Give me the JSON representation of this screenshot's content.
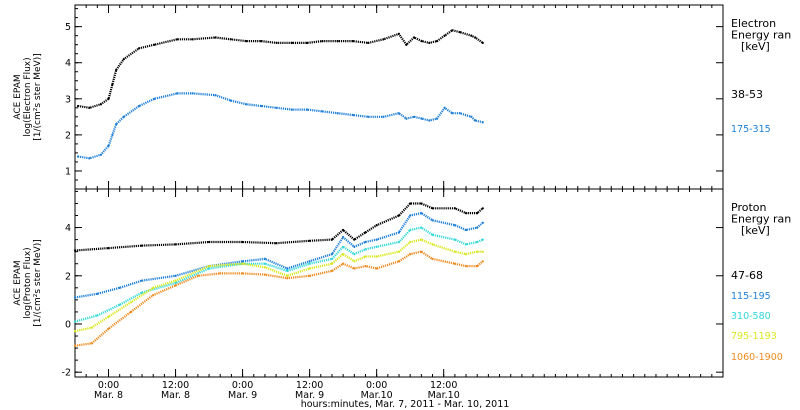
{
  "chart_data": [
    {
      "type": "scatter",
      "panel": "electron",
      "ylabel_lines": [
        "ACE EPAM",
        "log(Electron Flux)",
        "[1/(cm²s ster MeV)]"
      ],
      "ylim": [
        0.5,
        5.6
      ],
      "yticks": [
        1,
        2,
        3,
        4,
        5
      ],
      "legend_title_lines": [
        "Electron",
        "Energy ran",
        "[keV]"
      ],
      "series": [
        {
          "name": "38-53",
          "color": "#000000",
          "x": [
            0,
            3,
            6,
            8,
            9,
            10,
            12,
            16,
            20,
            26,
            30,
            36,
            40,
            44,
            48,
            52,
            56,
            60,
            64,
            68,
            72,
            76,
            80,
            84,
            86,
            88,
            90,
            92,
            94,
            96,
            98,
            100,
            103,
            104,
            106
          ],
          "y": [
            2.8,
            2.75,
            2.85,
            3.0,
            3.4,
            3.8,
            4.1,
            4.4,
            4.5,
            4.65,
            4.65,
            4.7,
            4.65,
            4.6,
            4.6,
            4.55,
            4.55,
            4.55,
            4.6,
            4.6,
            4.6,
            4.55,
            4.65,
            4.8,
            4.5,
            4.7,
            4.6,
            4.55,
            4.6,
            4.75,
            4.9,
            4.85,
            4.75,
            4.7,
            4.55
          ]
        },
        {
          "name": "175-315",
          "color": "#1e7fd8",
          "x": [
            0,
            3,
            6,
            8,
            9,
            10,
            12,
            16,
            20,
            26,
            30,
            36,
            40,
            44,
            48,
            52,
            56,
            60,
            64,
            68,
            72,
            76,
            80,
            84,
            86,
            88,
            90,
            92,
            94,
            96,
            98,
            100,
            103,
            104,
            106
          ],
          "y": [
            1.4,
            1.35,
            1.45,
            1.7,
            2.0,
            2.3,
            2.5,
            2.8,
            3.0,
            3.15,
            3.15,
            3.1,
            2.95,
            2.85,
            2.8,
            2.75,
            2.7,
            2.7,
            2.65,
            2.6,
            2.55,
            2.5,
            2.5,
            2.6,
            2.45,
            2.5,
            2.45,
            2.4,
            2.45,
            2.75,
            2.6,
            2.6,
            2.5,
            2.4,
            2.35
          ]
        }
      ]
    },
    {
      "type": "scatter",
      "panel": "proton",
      "ylabel_lines": [
        "ACE EPAM",
        "log(Proton Flux)",
        "[1/(cm²s ster MeV)]"
      ],
      "ylim": [
        -2.2,
        5.6
      ],
      "yticks": [
        -2,
        0,
        2,
        4
      ],
      "legend_title_lines": [
        "Proton",
        "Energy ran",
        "[keV]"
      ],
      "xlabel": "hours:minutes, Mar.  7, 2011 - Mar. 10, 2011",
      "xlim": [
        -6,
        110
      ],
      "xticks": [
        {
          "hour": 0,
          "time": "0:00",
          "date": "Mar. 8"
        },
        {
          "hour": 12,
          "time": "12:00",
          "date": "Mar. 8"
        },
        {
          "hour": 24,
          "time": "0:00",
          "date": "Mar. 9"
        },
        {
          "hour": 36,
          "time": "12:00",
          "date": "Mar. 9"
        },
        {
          "hour": 48,
          "time": "0:00",
          "date": "Mar.10"
        },
        {
          "hour": 60,
          "time": "12:00",
          "date": "Mar.10"
        }
      ],
      "series": [
        {
          "name": "47-68",
          "color": "#000000",
          "x": [
            -6,
            0,
            6,
            12,
            18,
            24,
            30,
            36,
            40,
            42,
            44,
            46,
            48,
            52,
            54,
            56,
            58,
            62,
            64,
            66,
            67
          ],
          "y": [
            3.05,
            3.15,
            3.25,
            3.3,
            3.4,
            3.4,
            3.35,
            3.45,
            3.5,
            3.9,
            3.5,
            3.8,
            4.1,
            4.5,
            5.0,
            5.0,
            4.8,
            4.8,
            4.6,
            4.6,
            4.8
          ]
        },
        {
          "name": "115-195",
          "color": "#1e7fd8",
          "x": [
            -6,
            -2,
            2,
            6,
            12,
            18,
            24,
            28,
            32,
            36,
            40,
            42,
            44,
            46,
            48,
            52,
            54,
            56,
            58,
            62,
            64,
            66,
            67
          ],
          "y": [
            1.1,
            1.25,
            1.5,
            1.8,
            2.0,
            2.4,
            2.6,
            2.7,
            2.3,
            2.6,
            2.9,
            3.6,
            3.2,
            3.4,
            3.5,
            3.8,
            4.5,
            4.6,
            4.3,
            4.1,
            3.9,
            4.0,
            4.2
          ]
        },
        {
          "name": "310-580",
          "color": "#33d8d8",
          "x": [
            -6,
            -2,
            2,
            6,
            12,
            18,
            24,
            28,
            32,
            36,
            40,
            42,
            44,
            46,
            48,
            52,
            54,
            56,
            58,
            62,
            64,
            66,
            67
          ],
          "y": [
            0.1,
            0.35,
            0.8,
            1.3,
            1.7,
            2.3,
            2.5,
            2.5,
            2.2,
            2.5,
            2.7,
            3.2,
            2.9,
            3.1,
            3.2,
            3.4,
            3.9,
            4.0,
            3.7,
            3.5,
            3.3,
            3.4,
            3.5
          ]
        },
        {
          "name": "795-1193",
          "color": "#d8e81e",
          "x": [
            -6,
            -3,
            0,
            4,
            8,
            12,
            18,
            24,
            28,
            32,
            36,
            40,
            42,
            44,
            46,
            48,
            52,
            54,
            56,
            58,
            62,
            64,
            66,
            67
          ],
          "y": [
            -0.3,
            -0.15,
            0.3,
            0.9,
            1.5,
            1.8,
            2.4,
            2.5,
            2.35,
            2.0,
            2.3,
            2.5,
            2.9,
            2.6,
            2.8,
            2.8,
            3.0,
            3.4,
            3.5,
            3.3,
            3.0,
            2.9,
            3.0,
            3.0
          ]
        },
        {
          "name": "1060-1900",
          "color": "#f08a1e",
          "x": [
            -6,
            -3,
            0,
            4,
            8,
            12,
            16,
            20,
            24,
            28,
            32,
            36,
            40,
            42,
            44,
            46,
            48,
            52,
            54,
            56,
            58,
            62,
            64,
            66,
            67
          ],
          "y": [
            -0.9,
            -0.8,
            -0.2,
            0.5,
            1.2,
            1.6,
            2.0,
            2.1,
            2.1,
            2.05,
            1.9,
            2.0,
            2.2,
            2.5,
            2.3,
            2.4,
            2.3,
            2.6,
            2.9,
            3.0,
            2.7,
            2.5,
            2.4,
            2.4,
            2.6
          ]
        }
      ]
    }
  ],
  "top_panel_x": {
    "xlim": [
      -6,
      110
    ],
    "shift_hours": -67.4,
    "note_visible": false
  }
}
